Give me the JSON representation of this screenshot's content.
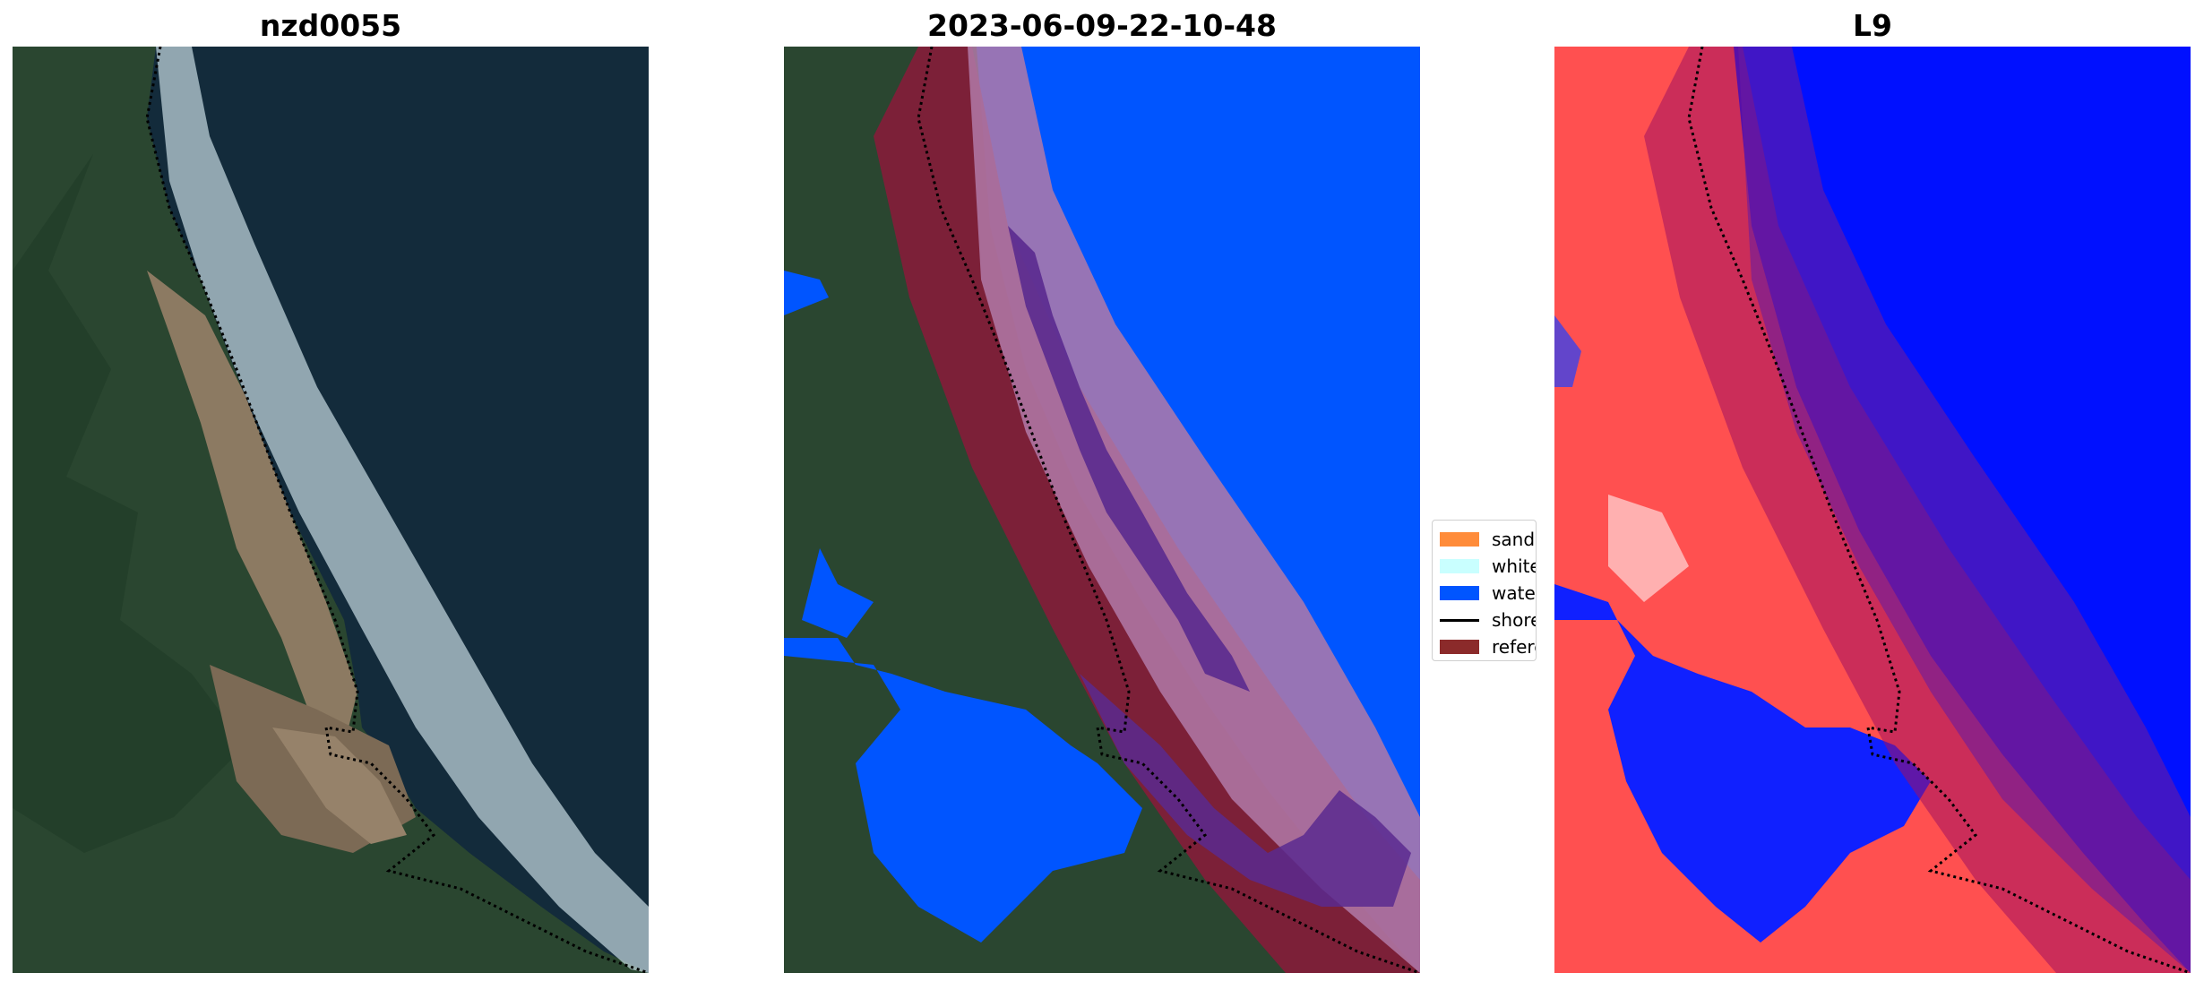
{
  "panels": [
    {
      "title": "nzd0055"
    },
    {
      "title": "2023-06-09-22-10-48"
    },
    {
      "title": "L9"
    }
  ],
  "legend": {
    "items": [
      {
        "label": "sand",
        "color": "#ff8c3a"
      },
      {
        "label": "whitewater",
        "color": "#c9ffff"
      },
      {
        "label": "water",
        "color": "#0055ff"
      },
      {
        "label": "shoreline",
        "color": "#000000"
      },
      {
        "label": "reference shoreline buffer",
        "color": "#8b2a2a"
      }
    ]
  },
  "colors": {
    "ocean": "#132b3b",
    "land": "#2a4630",
    "beach": "#8c7a62",
    "surf": "#c8dce2",
    "buffer": "#8b1a3a",
    "index_high": "#ff3030",
    "index_low": "#0010ff"
  }
}
